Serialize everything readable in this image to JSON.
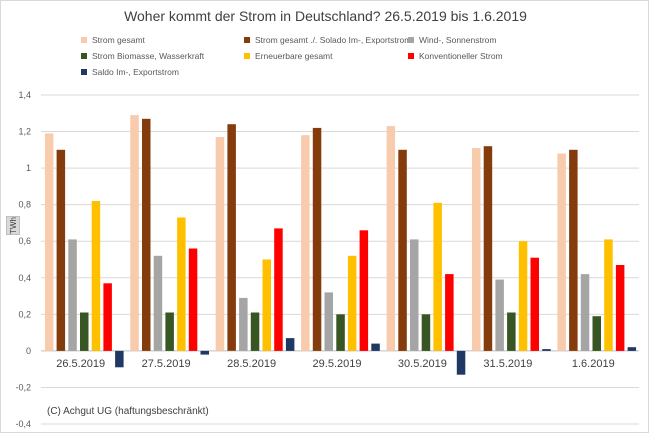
{
  "title": "Woher kommt der Strom in Deutschland? 26.5.2019 bis 1.6.2019",
  "credit": "(C) Achgut UG (haftungsbeschränkt)",
  "colors": {
    "gridline": "#d9d9d9",
    "axis_text": "#595959",
    "category_text": "#404040"
  },
  "chart_data": {
    "type": "bar",
    "title": "Woher kommt der Strom in Deutschland? 26.5.2019 bis 1.6.2019",
    "xlabel": "",
    "ylabel": "TWh",
    "ylim": [
      -0.4,
      1.4
    ],
    "yticks": [
      -0.4,
      -0.2,
      0,
      0.2,
      0.4,
      0.6,
      0.8,
      1,
      1.2,
      1.4
    ],
    "ytick_labels": [
      "-0,4",
      "-0,2",
      "0",
      "0,2",
      "0,4",
      "0,6",
      "0,8",
      "1",
      "1,2",
      "1,4"
    ],
    "grid": true,
    "legend_position": "top",
    "categories": [
      "26.5.2019",
      "27.5.2019",
      "28.5.2019",
      "29.5.2019",
      "30.5.2019",
      "31.5.2019",
      "1.6.2019"
    ],
    "series": [
      {
        "name": "Strom gesamt",
        "color": "#f8cbad",
        "values": [
          1.19,
          1.29,
          1.17,
          1.18,
          1.23,
          1.11,
          1.08
        ]
      },
      {
        "name": "Strom gesamt ./. Solado Im-, Exportstrom",
        "color": "#843c0c",
        "values": [
          1.1,
          1.27,
          1.24,
          1.22,
          1.1,
          1.12,
          1.1
        ]
      },
      {
        "name": "Wind-, Sonnenstrom",
        "color": "#a5a5a5",
        "values": [
          0.61,
          0.52,
          0.29,
          0.32,
          0.61,
          0.39,
          0.42
        ]
      },
      {
        "name": "Strom Biomasse, Wasserkraft",
        "color": "#375623",
        "values": [
          0.21,
          0.21,
          0.21,
          0.2,
          0.2,
          0.21,
          0.19
        ]
      },
      {
        "name": "Erneuerbare gesamt",
        "color": "#ffc000",
        "values": [
          0.82,
          0.73,
          0.5,
          0.52,
          0.81,
          0.6,
          0.61
        ]
      },
      {
        "name": "Konventioneller Strom",
        "color": "#ff0000",
        "values": [
          0.37,
          0.56,
          0.67,
          0.66,
          0.42,
          0.51,
          0.47
        ]
      },
      {
        "name": "Saldo Im-, Exportstrom",
        "color": "#203864",
        "values": [
          -0.09,
          -0.02,
          0.07,
          0.04,
          -0.13,
          0.01,
          0.02
        ]
      }
    ]
  }
}
